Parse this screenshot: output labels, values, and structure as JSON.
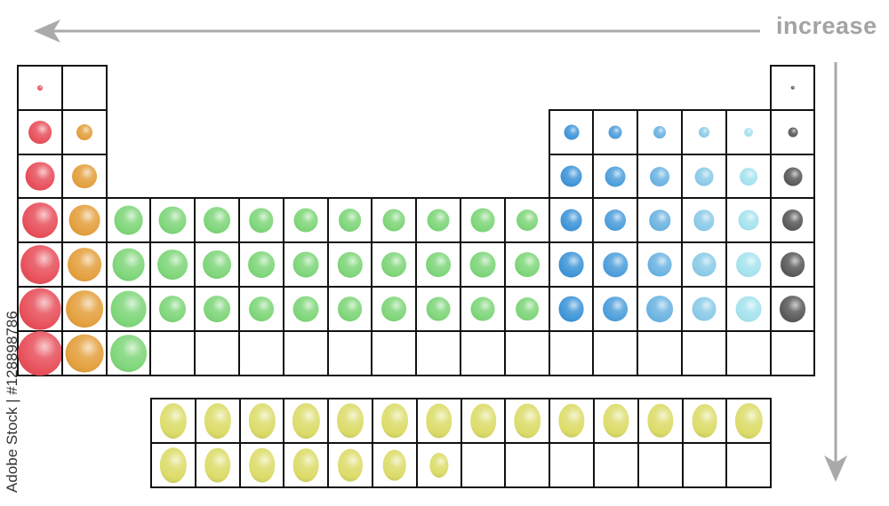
{
  "arrow_label": "increase",
  "watermark": "Adobe Stock | #128898786",
  "colors": {
    "group1": "#e8505b",
    "group2": "#e4a03e",
    "transition": "#7fd67a",
    "p_block": [
      "#3f95d8",
      "#4e9fdc",
      "#6cb4e2",
      "#8ccbe8",
      "#a5e3ee"
    ],
    "noble": "#5a5a5a",
    "f_block": "#dcdc6a",
    "grid": "#111111",
    "arrow": "#aaaaaa"
  },
  "main_table": [
    [
      0.12,
      0,
      null,
      null,
      null,
      null,
      null,
      null,
      null,
      null,
      null,
      null,
      null,
      null,
      null,
      null,
      null,
      0.09
    ],
    [
      0.52,
      0.36,
      null,
      null,
      null,
      null,
      null,
      null,
      null,
      null,
      null,
      null,
      0.34,
      0.3,
      0.28,
      0.24,
      0.2,
      0.22
    ],
    [
      0.66,
      0.56,
      null,
      null,
      null,
      null,
      null,
      null,
      null,
      null,
      null,
      null,
      0.5,
      0.46,
      0.44,
      0.42,
      0.4,
      0.42
    ],
    [
      0.8,
      0.7,
      0.66,
      0.62,
      0.6,
      0.55,
      0.54,
      0.52,
      0.5,
      0.5,
      0.54,
      0.48,
      0.5,
      0.48,
      0.47,
      0.47,
      0.46,
      0.48
    ],
    [
      0.88,
      0.76,
      0.74,
      0.68,
      0.64,
      0.6,
      0.58,
      0.57,
      0.56,
      0.56,
      0.58,
      0.56,
      0.58,
      0.55,
      0.54,
      0.54,
      0.56,
      0.56
    ],
    [
      0.94,
      0.84,
      0.82,
      0.6,
      0.6,
      0.56,
      0.58,
      0.56,
      0.56,
      0.54,
      0.54,
      0.52,
      0.58,
      0.56,
      0.6,
      0.54,
      0.58,
      0.6
    ],
    [
      1.0,
      0.86,
      0.84,
      0,
      0,
      0,
      0,
      0,
      0,
      0,
      0,
      0,
      0,
      0,
      0,
      0,
      0,
      0
    ]
  ],
  "f_block": [
    [
      0.8,
      0.8,
      0.8,
      0.8,
      0.79,
      0.79,
      0.78,
      0.78,
      0.78,
      0.77,
      0.77,
      0.77,
      0.76,
      0.8
    ],
    [
      0.8,
      0.78,
      0.78,
      0.76,
      0.74,
      0.7,
      0.56,
      0,
      0,
      0,
      0,
      0,
      0,
      0
    ]
  ]
}
